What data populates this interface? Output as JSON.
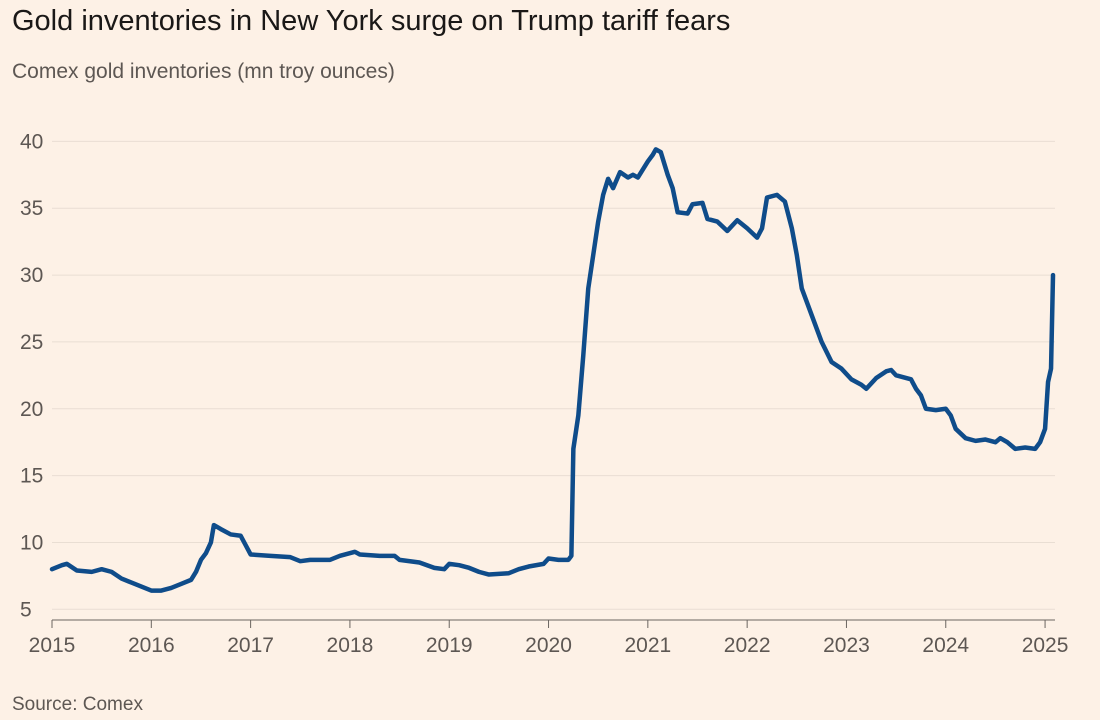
{
  "chart_data": {
    "type": "line",
    "title": "Gold inventories in New York surge on Trump tariff fears",
    "subtitle": "Comex gold inventories (mn troy ounces)",
    "source": "Source: Comex",
    "x": [
      2015.0,
      2015.1,
      2015.15,
      2015.25,
      2015.4,
      2015.5,
      2015.6,
      2015.7,
      2015.8,
      2015.9,
      2016.0,
      2016.1,
      2016.2,
      2016.3,
      2016.4,
      2016.45,
      2016.5,
      2016.55,
      2016.6,
      2016.63,
      2016.7,
      2016.8,
      2016.9,
      2016.95,
      2017.0,
      2017.2,
      2017.4,
      2017.5,
      2017.6,
      2017.8,
      2017.9,
      2018.05,
      2018.1,
      2018.3,
      2018.45,
      2018.5,
      2018.7,
      2018.85,
      2018.95,
      2019.0,
      2019.1,
      2019.2,
      2019.3,
      2019.4,
      2019.6,
      2019.7,
      2019.8,
      2019.95,
      2020.0,
      2020.1,
      2020.2,
      2020.23,
      2020.25,
      2020.3,
      2020.35,
      2020.4,
      2020.45,
      2020.5,
      2020.55,
      2020.6,
      2020.65,
      2020.72,
      2020.8,
      2020.85,
      2020.9,
      2021.0,
      2021.05,
      2021.08,
      2021.13,
      2021.2,
      2021.25,
      2021.3,
      2021.4,
      2021.45,
      2021.55,
      2021.6,
      2021.7,
      2021.8,
      2021.9,
      2022.0,
      2022.1,
      2022.15,
      2022.2,
      2022.3,
      2022.38,
      2022.45,
      2022.5,
      2022.55,
      2022.65,
      2022.75,
      2022.85,
      2022.95,
      2023.05,
      2023.15,
      2023.2,
      2023.3,
      2023.4,
      2023.45,
      2023.5,
      2023.65,
      2023.7,
      2023.75,
      2023.8,
      2023.9,
      2024.0,
      2024.05,
      2024.1,
      2024.2,
      2024.3,
      2024.4,
      2024.5,
      2024.55,
      2024.62,
      2024.7,
      2024.8,
      2024.9,
      2024.95,
      2025.0,
      2025.03,
      2025.06,
      2025.08
    ],
    "series": [
      {
        "color": "#0f4c8a",
        "values": [
          8.0,
          8.3,
          8.4,
          7.9,
          7.8,
          8.0,
          7.8,
          7.3,
          7.0,
          6.7,
          6.4,
          6.4,
          6.6,
          6.9,
          7.2,
          7.8,
          8.7,
          9.2,
          10.0,
          11.3,
          11.0,
          10.6,
          10.5,
          9.8,
          9.1,
          9.0,
          8.9,
          8.6,
          8.7,
          8.7,
          9.0,
          9.3,
          9.1,
          9.0,
          9.0,
          8.7,
          8.5,
          8.1,
          8.0,
          8.4,
          8.3,
          8.1,
          7.8,
          7.6,
          7.7,
          8.0,
          8.2,
          8.4,
          8.8,
          8.7,
          8.7,
          9.0,
          17.0,
          19.5,
          24.0,
          29.0,
          31.5,
          34.0,
          36.0,
          37.2,
          36.5,
          37.7,
          37.3,
          37.5,
          37.3,
          38.5,
          39.0,
          39.4,
          39.2,
          37.5,
          36.5,
          34.7,
          34.6,
          35.3,
          35.4,
          34.2,
          34.0,
          33.3,
          34.1,
          33.5,
          32.8,
          33.5,
          35.8,
          36.0,
          35.5,
          33.5,
          31.5,
          29.0,
          27.0,
          25.0,
          23.5,
          23.0,
          22.2,
          21.8,
          21.5,
          22.3,
          22.8,
          22.9,
          22.5,
          22.2,
          21.5,
          21.0,
          20.0,
          19.9,
          20.0,
          19.5,
          18.5,
          17.8,
          17.6,
          17.7,
          17.5,
          17.8,
          17.5,
          17.0,
          17.1,
          17.0,
          17.5,
          18.5,
          22.0,
          23.0,
          30.0
        ]
      }
    ],
    "xlim": [
      2015,
      2025.1
    ],
    "xticks": [
      2015,
      2016,
      2017,
      2018,
      2019,
      2020,
      2021,
      2022,
      2023,
      2024,
      2025
    ],
    "ylim": [
      4.2,
      41.6
    ],
    "yticks": [
      5,
      10,
      15,
      20,
      25,
      30,
      35,
      40
    ],
    "grid": true
  }
}
